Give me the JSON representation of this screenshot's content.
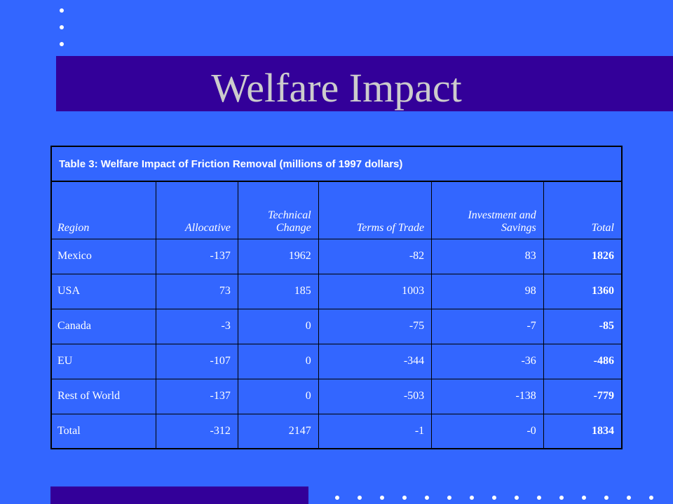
{
  "slide": {
    "title": "Welfare Impact",
    "colors": {
      "background": "#3366ff",
      "title_bar": "#330099",
      "title_text": "#cccccc"
    }
  },
  "table": {
    "caption": "Table 3: Welfare Impact of Friction Removal (millions of 1997 dollars)",
    "headers": [
      "Region",
      "Allocative",
      "Technical Change",
      "Terms of Trade",
      "Investment and Savings",
      "Total"
    ],
    "rows": [
      [
        "Mexico",
        "-137",
        "1962",
        "-82",
        "83",
        "1826"
      ],
      [
        "USA",
        "73",
        "185",
        "1003",
        "98",
        "1360"
      ],
      [
        "Canada",
        "-3",
        "0",
        "-75",
        "-7",
        "-85"
      ],
      [
        "EU",
        "-107",
        "0",
        "-344",
        "-36",
        "-486"
      ],
      [
        "Rest of World",
        "-137",
        "0",
        "-503",
        "-138",
        "-779"
      ],
      [
        "Total",
        "-312",
        "2147",
        "-1",
        "-0",
        "1834"
      ]
    ]
  }
}
